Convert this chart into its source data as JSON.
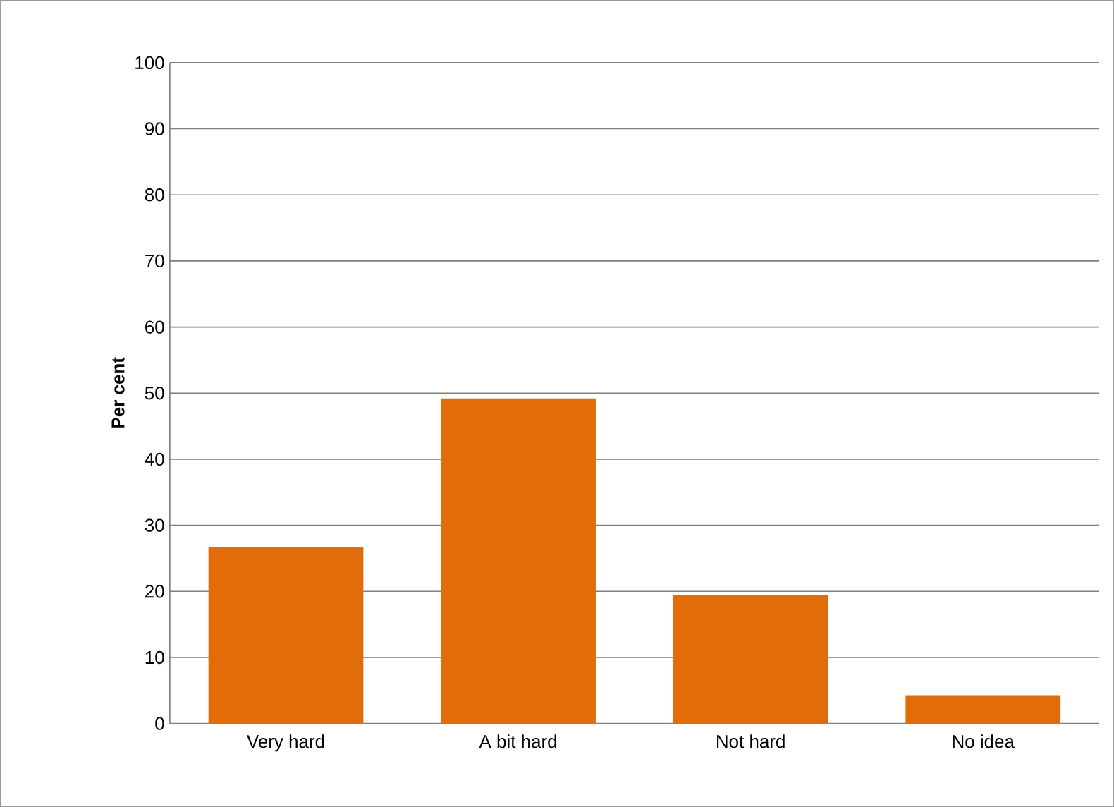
{
  "chart_data": {
    "type": "bar",
    "ylabel": "Per cent",
    "categories": [
      "Very hard",
      "A bit hard",
      "Not hard",
      "No idea"
    ],
    "values": [
      26.7,
      49.2,
      19.5,
      4.3
    ],
    "color": "#e36c0a",
    "ylim": [
      0,
      100
    ],
    "yticks": [
      0,
      10,
      20,
      30,
      40,
      50,
      60,
      70,
      80,
      90,
      100
    ],
    "grid": "y"
  }
}
